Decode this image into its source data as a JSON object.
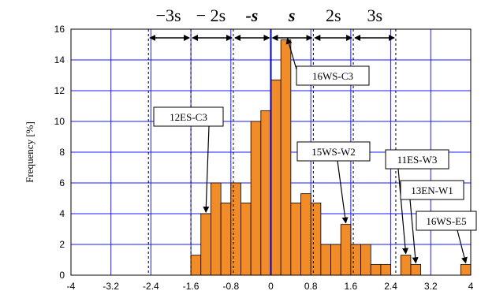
{
  "chart_data": {
    "type": "bar",
    "ylabel": "Frequency [%]",
    "xlim": [
      -4,
      4
    ],
    "ylim": [
      0,
      16
    ],
    "xticks": [
      "-4",
      "-3.2",
      "-2.4",
      "-1.6",
      "-0.8",
      "0",
      "0.8",
      "1.6",
      "2.4",
      "3.2",
      "4"
    ],
    "yticks": [
      "0",
      "2",
      "4",
      "6",
      "8",
      "10",
      "12",
      "14",
      "16"
    ],
    "grid": true,
    "bar_color": "#f28c28",
    "bin_width": 0.2,
    "bins": [
      {
        "x": -1.5,
        "value": 1.3
      },
      {
        "x": -1.3,
        "value": 4.0
      },
      {
        "x": -1.1,
        "value": 6.0
      },
      {
        "x": -0.9,
        "value": 4.7
      },
      {
        "x": -0.7,
        "value": 6.0
      },
      {
        "x": -0.5,
        "value": 4.7
      },
      {
        "x": -0.3,
        "value": 10.0
      },
      {
        "x": -0.1,
        "value": 10.7
      },
      {
        "x": 0.1,
        "value": 12.7
      },
      {
        "x": 0.3,
        "value": 15.3
      },
      {
        "x": 0.5,
        "value": 4.7
      },
      {
        "x": 0.7,
        "value": 5.3
      },
      {
        "x": 0.9,
        "value": 4.7
      },
      {
        "x": 1.1,
        "value": 2.0
      },
      {
        "x": 1.3,
        "value": 2.0
      },
      {
        "x": 1.5,
        "value": 3.3
      },
      {
        "x": 1.7,
        "value": 2.0
      },
      {
        "x": 1.9,
        "value": 2.0
      },
      {
        "x": 2.1,
        "value": 0.7
      },
      {
        "x": 2.3,
        "value": 0.7
      },
      {
        "x": 2.7,
        "value": 1.3
      },
      {
        "x": 2.9,
        "value": 0.7
      },
      {
        "x": 3.9,
        "value": 0.7
      }
    ],
    "mean_line_x": 0.0,
    "sigma_lines_x": [
      -2.45,
      -1.6,
      -0.75,
      0.85,
      1.65,
      2.5
    ],
    "sigma_labels": [
      "−3s",
      "− 2s",
      "-s",
      "s",
      "2s",
      "3s"
    ],
    "annotations": [
      {
        "label": "16WS-C3",
        "target_x": 0.3,
        "target_y": 15.3
      },
      {
        "label": "12ES-C3",
        "target_x": -1.3,
        "target_y": 4.0
      },
      {
        "label": "15WS-W2",
        "target_x": 1.5,
        "target_y": 3.3
      },
      {
        "label": "11ES-W3",
        "target_x": 2.7,
        "target_y": 1.3
      },
      {
        "label": "13EN-W1",
        "target_x": 2.9,
        "target_y": 0.7
      },
      {
        "label": "16WS-E5",
        "target_x": 3.9,
        "target_y": 0.7
      }
    ]
  }
}
